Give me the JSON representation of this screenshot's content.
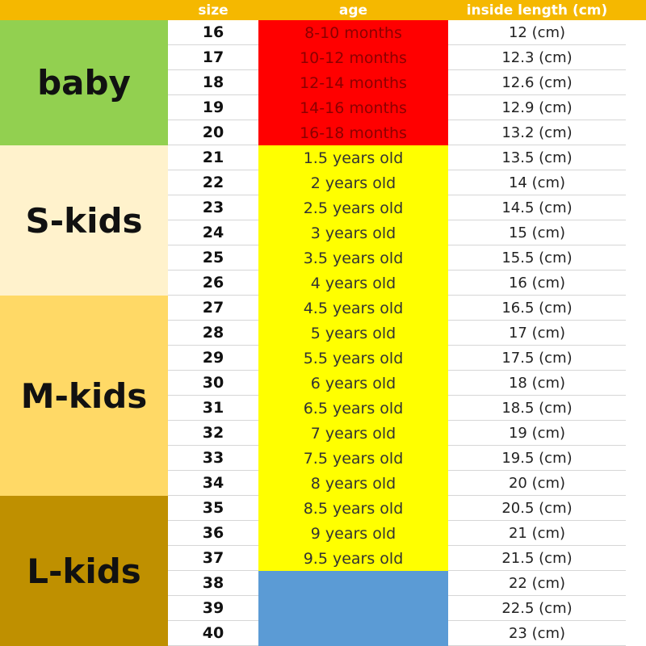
{
  "header": {
    "columns": [
      "size",
      "age",
      "inside length (cm)"
    ]
  },
  "groups": [
    {
      "label": "baby",
      "rows": [
        {
          "size": "16",
          "age": "8-10 months",
          "length": "12 (cm)"
        },
        {
          "size": "17",
          "age": "10-12 months",
          "length": "12.3 (cm)"
        },
        {
          "size": "18",
          "age": "12-14 months",
          "length": "12.6 (cm)"
        },
        {
          "size": "19",
          "age": "14-16 months",
          "length": "12.9 (cm)"
        },
        {
          "size": "20",
          "age": "16-18 months",
          "length": "13.2 (cm)"
        }
      ]
    },
    {
      "label": "S-kids",
      "rows": [
        {
          "size": "21",
          "age": "1.5 years old",
          "length": "13.5 (cm)"
        },
        {
          "size": "22",
          "age": "2 years old",
          "length": "14 (cm)"
        },
        {
          "size": "23",
          "age": "2.5 years old",
          "length": "14.5 (cm)"
        },
        {
          "size": "24",
          "age": "3 years old",
          "length": "15 (cm)"
        },
        {
          "size": "25",
          "age": "3.5 years old",
          "length": "15.5 (cm)"
        },
        {
          "size": "26",
          "age": "4 years old",
          "length": "16 (cm)"
        }
      ]
    },
    {
      "label": "M-kids",
      "rows": [
        {
          "size": "27",
          "age": "4.5 years old",
          "length": "16.5 (cm)"
        },
        {
          "size": "28",
          "age": "5 years old",
          "length": "17 (cm)"
        },
        {
          "size": "29",
          "age": "5.5 years old",
          "length": "17.5 (cm)"
        },
        {
          "size": "30",
          "age": "6 years old",
          "length": "18 (cm)"
        },
        {
          "size": "31",
          "age": "6.5 years old",
          "length": "18.5 (cm)"
        },
        {
          "size": "32",
          "age": "7 years old",
          "length": "19 (cm)"
        },
        {
          "size": "33",
          "age": "7.5 years old",
          "length": "19.5 (cm)"
        },
        {
          "size": "34",
          "age": "8 years old",
          "length": "20 (cm)"
        }
      ]
    },
    {
      "label": "L-kids",
      "rows": [
        {
          "size": "35",
          "age": "8.5 years old",
          "length": "20.5 (cm)"
        },
        {
          "size": "36",
          "age": "9 years old",
          "length": "21 (cm)"
        },
        {
          "size": "37",
          "age": "9.5 years old",
          "length": "21.5 (cm)"
        },
        {
          "size": "38",
          "length": "22 (cm)"
        },
        {
          "size": "39",
          "length": "22.5 (cm)"
        },
        {
          "size": "40",
          "length": "23 (cm)"
        }
      ]
    }
  ]
}
